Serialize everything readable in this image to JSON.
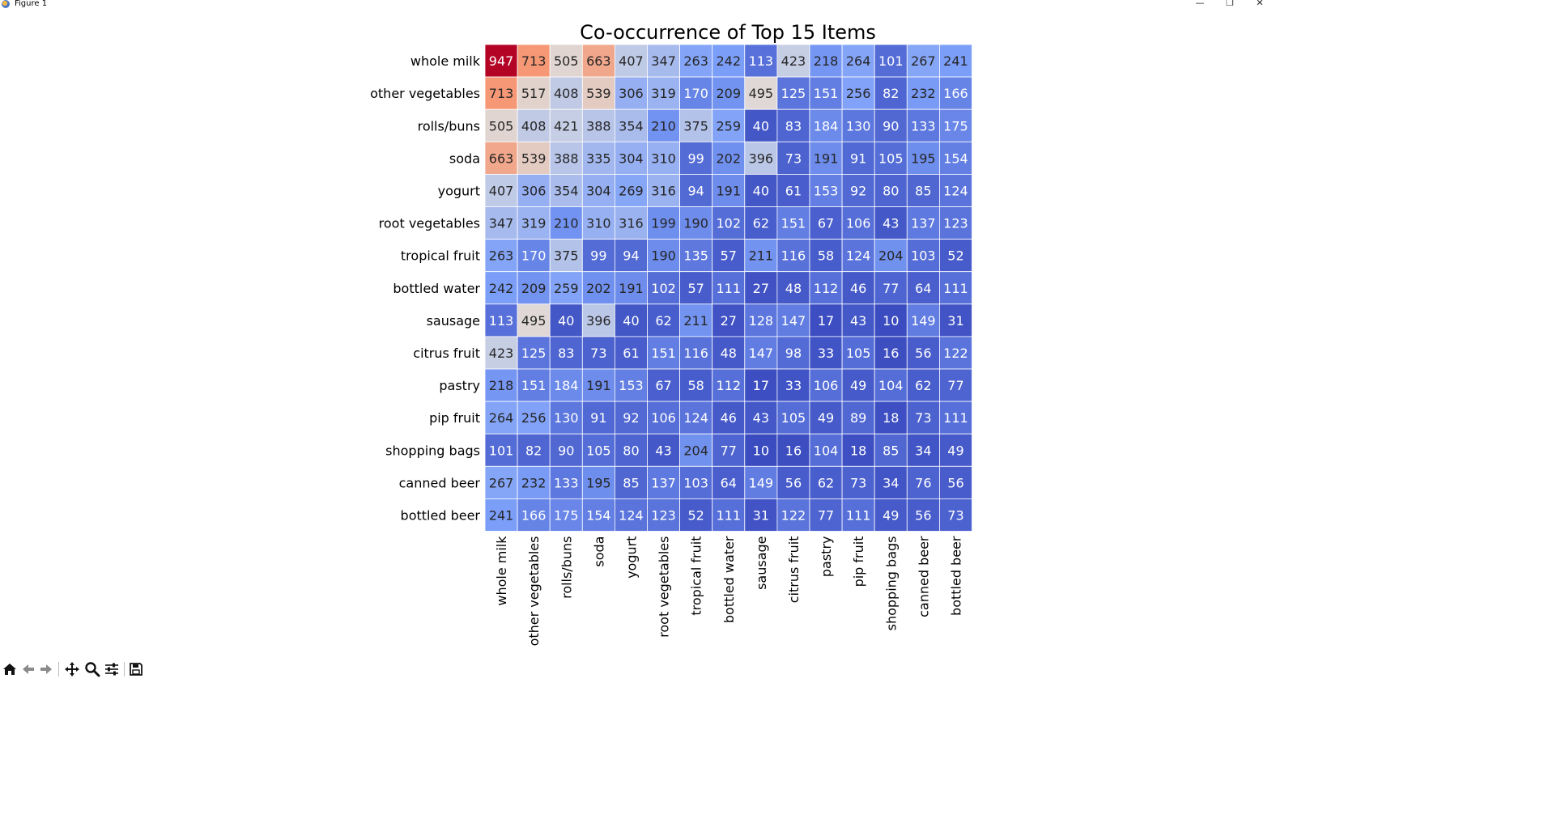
{
  "window": {
    "title": "Figure 1",
    "minimize_glyph": "—",
    "maximize_glyph": "❐",
    "close_glyph": "✕"
  },
  "toolbar": {
    "buttons": [
      {
        "name": "home-icon"
      },
      {
        "name": "back-arrow-icon"
      },
      {
        "name": "forward-arrow-icon"
      },
      {
        "name": "pan-move-icon"
      },
      {
        "name": "zoom-magnifier-icon"
      },
      {
        "name": "configure-subplots-icon"
      },
      {
        "name": "save-figure-icon"
      }
    ]
  },
  "chart_data": {
    "type": "heatmap",
    "title": "Co-occurrence of Top 15 Items",
    "xlabel": "",
    "ylabel": "",
    "colormap": "coolwarm",
    "color_range": [
      10,
      947
    ],
    "rows": [
      "whole milk",
      "other vegetables",
      "rolls/buns",
      "soda",
      "yogurt",
      "root vegetables",
      "tropical fruit",
      "bottled water",
      "sausage",
      "citrus fruit",
      "pastry",
      "pip fruit",
      "shopping bags",
      "canned beer",
      "bottled beer"
    ],
    "columns": [
      "whole milk",
      "other vegetables",
      "rolls/buns",
      "soda",
      "yogurt",
      "root vegetables",
      "tropical fruit",
      "bottled water",
      "sausage",
      "citrus fruit",
      "pastry",
      "pip fruit",
      "shopping bags",
      "canned beer",
      "bottled beer"
    ],
    "values": [
      [
        947,
        713,
        505,
        663,
        407,
        347,
        263,
        242,
        113,
        423,
        218,
        264,
        101,
        267,
        241
      ],
      [
        713,
        517,
        408,
        539,
        306,
        319,
        170,
        209,
        495,
        125,
        151,
        256,
        82,
        232,
        166
      ],
      [
        505,
        408,
        421,
        388,
        354,
        210,
        375,
        259,
        40,
        83,
        184,
        130,
        90,
        133,
        175
      ],
      [
        663,
        539,
        388,
        335,
        304,
        310,
        99,
        202,
        396,
        73,
        191,
        91,
        105,
        195,
        154
      ],
      [
        407,
        306,
        354,
        304,
        269,
        316,
        94,
        191,
        40,
        61,
        153,
        92,
        80,
        85,
        124
      ],
      [
        347,
        319,
        210,
        310,
        316,
        199,
        190,
        102,
        62,
        151,
        67,
        106,
        43,
        137,
        123
      ],
      [
        263,
        170,
        375,
        99,
        94,
        190,
        135,
        57,
        211,
        116,
        58,
        124,
        204,
        103,
        52
      ],
      [
        242,
        209,
        259,
        202,
        191,
        102,
        57,
        111,
        27,
        48,
        112,
        46,
        77,
        64,
        111
      ],
      [
        113,
        495,
        40,
        396,
        40,
        62,
        211,
        27,
        128,
        147,
        17,
        43,
        10,
        149,
        31
      ],
      [
        423,
        125,
        83,
        73,
        61,
        151,
        116,
        48,
        147,
        98,
        33,
        105,
        16,
        56,
        122
      ],
      [
        218,
        151,
        184,
        191,
        153,
        67,
        58,
        112,
        17,
        33,
        106,
        49,
        104,
        62,
        77
      ],
      [
        264,
        256,
        130,
        91,
        92,
        106,
        124,
        46,
        43,
        105,
        49,
        89,
        18,
        73,
        111
      ],
      [
        101,
        82,
        90,
        105,
        80,
        43,
        204,
        77,
        10,
        16,
        104,
        18,
        85,
        34,
        49
      ],
      [
        267,
        232,
        133,
        195,
        85,
        137,
        103,
        64,
        149,
        56,
        62,
        73,
        34,
        76,
        56
      ],
      [
        241,
        166,
        175,
        154,
        124,
        123,
        52,
        111,
        31,
        122,
        77,
        111,
        49,
        56,
        73
      ]
    ]
  }
}
